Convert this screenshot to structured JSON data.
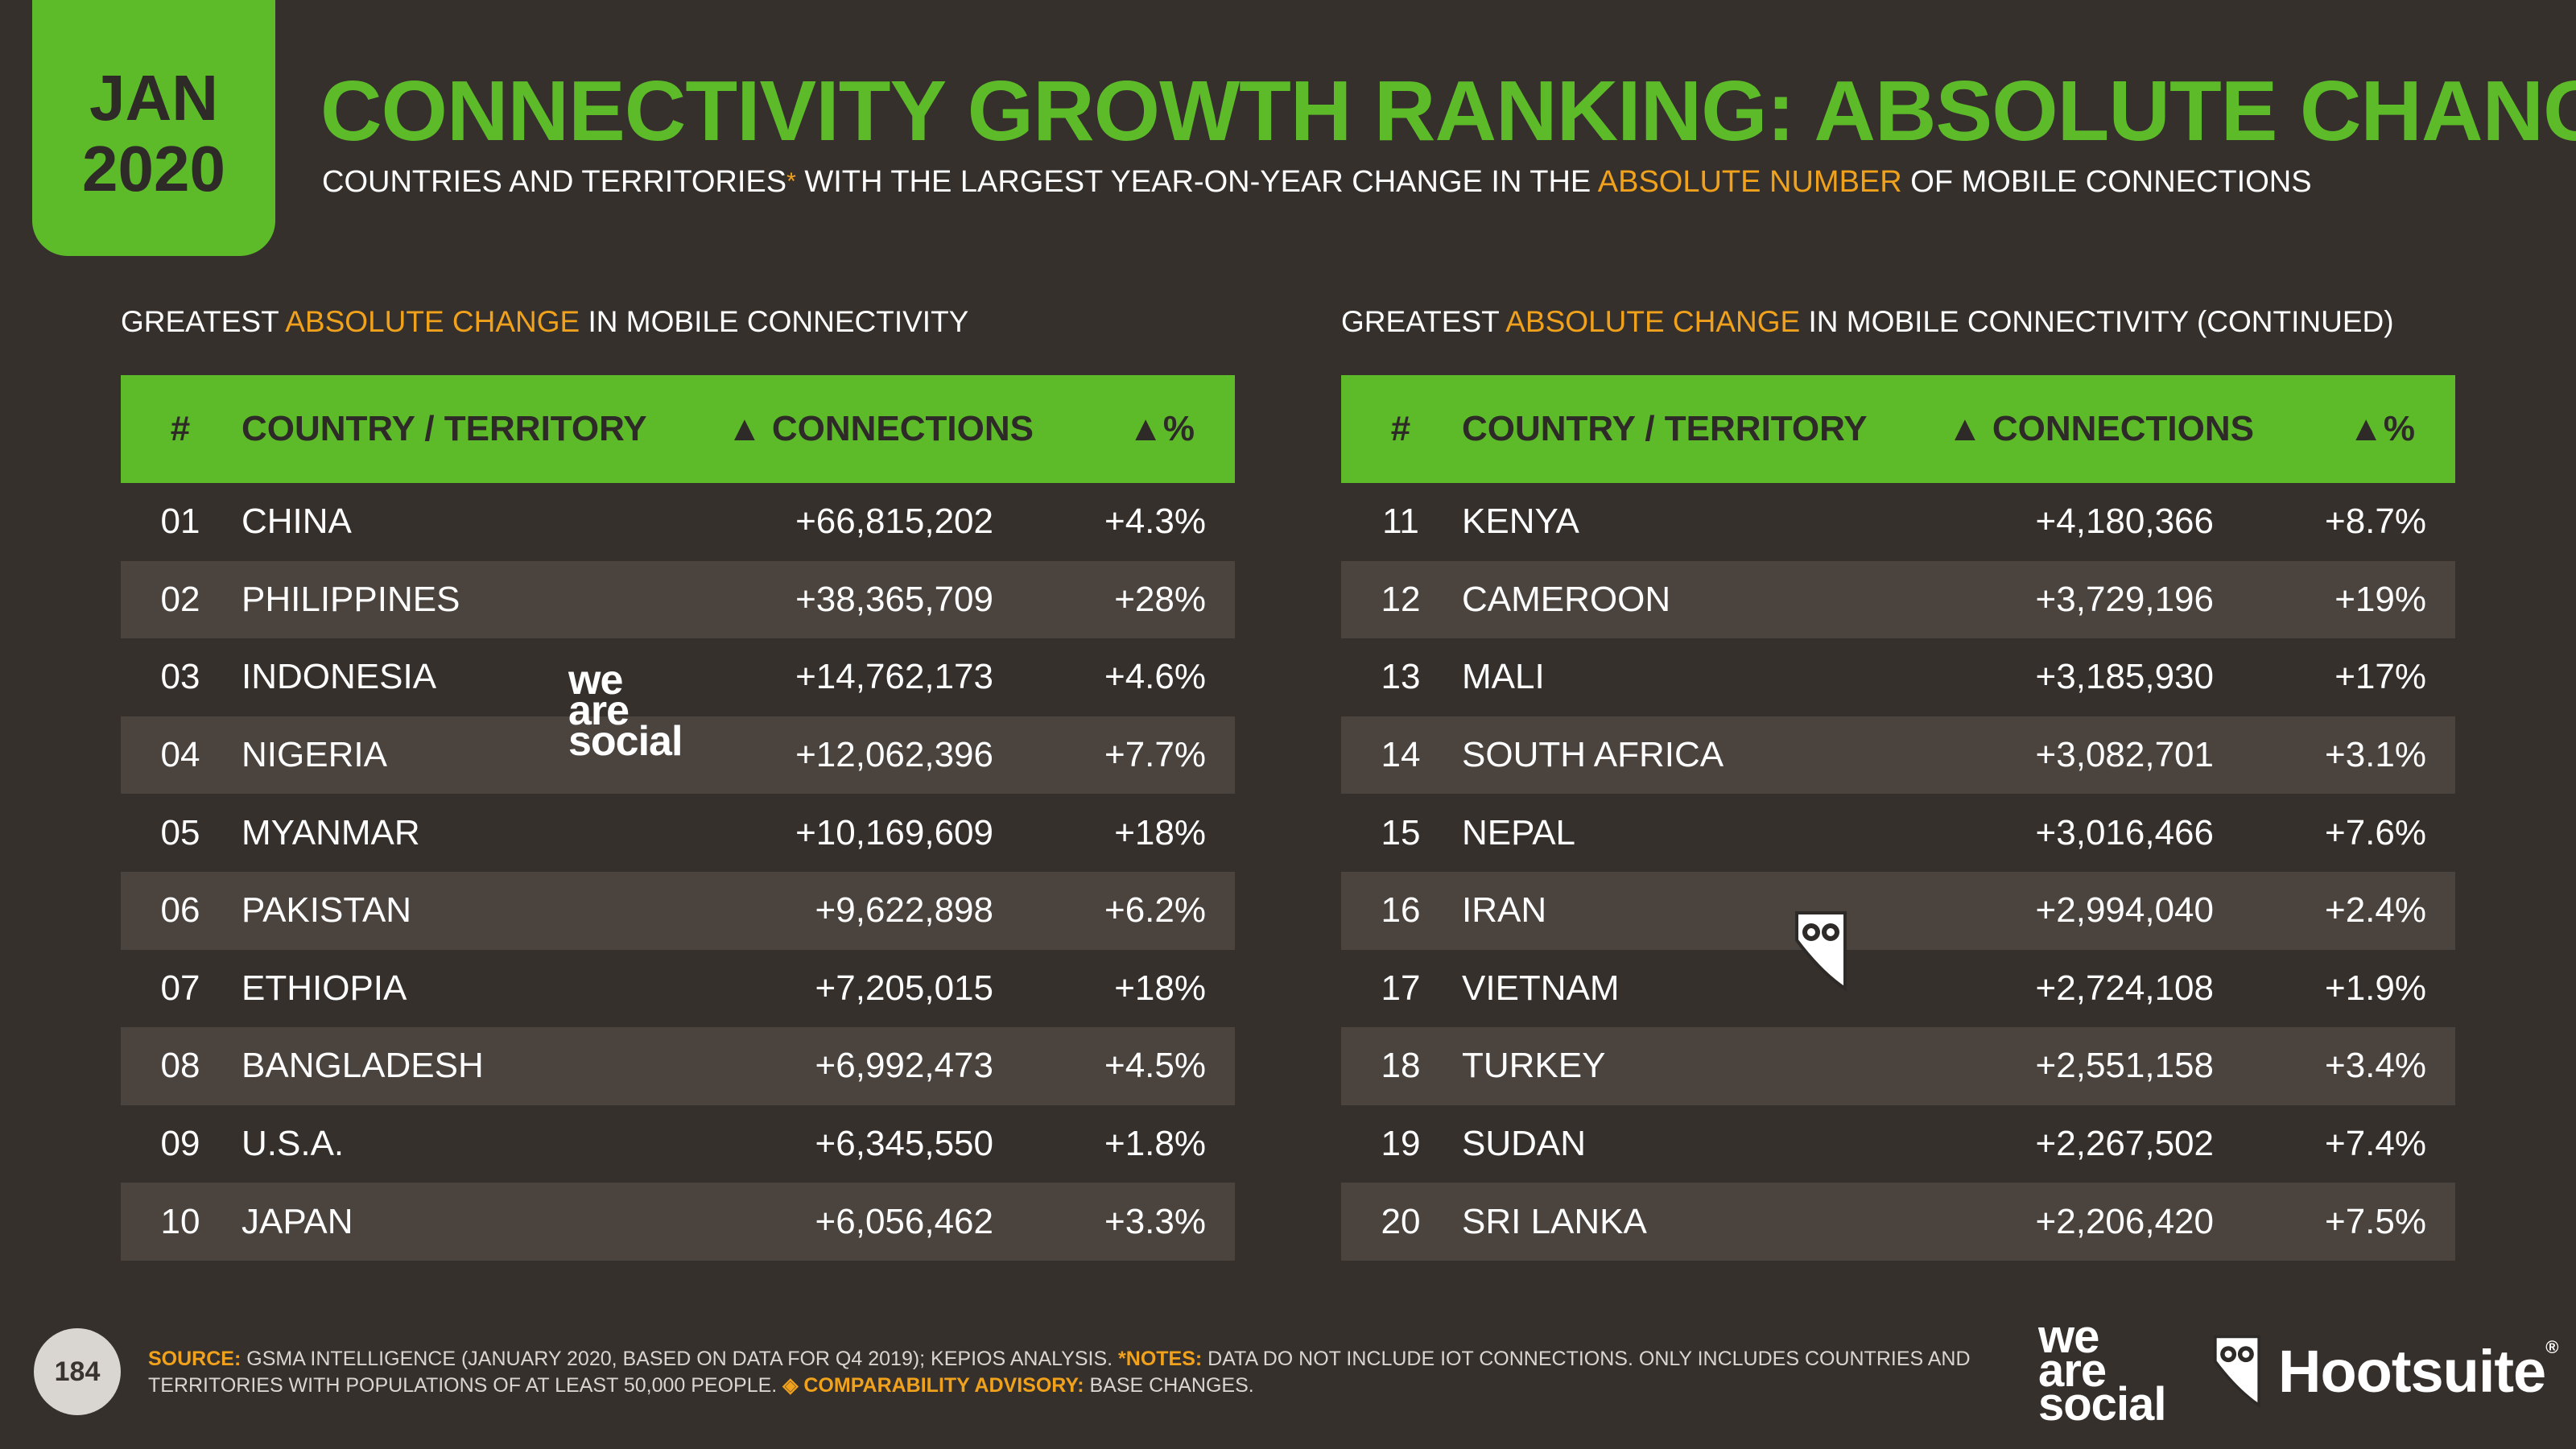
{
  "badge": {
    "month": "JAN",
    "year": "2020"
  },
  "header": {
    "title": "CONNECTIVITY GROWTH RANKING: ABSOLUTE CHANGE",
    "subtitle_part1": "COUNTRIES AND TERRITORIES",
    "subtitle_star": "*",
    "subtitle_part2": " WITH THE LARGEST YEAR-ON-YEAR CHANGE IN THE ",
    "subtitle_highlight": "ABSOLUTE NUMBER",
    "subtitle_part3": " OF MOBILE CONNECTIONS"
  },
  "left_section": {
    "pre": "GREATEST ",
    "highlight": "ABSOLUTE CHANGE",
    "post": " IN MOBILE CONNECTIVITY"
  },
  "right_section": {
    "pre": "GREATEST ",
    "highlight": "ABSOLUTE CHANGE",
    "post": " IN MOBILE CONNECTIVITY (CONTINUED)"
  },
  "columns": {
    "rank": "#",
    "name": "COUNTRY / TERRITORY",
    "connections": "▲ CONNECTIONS",
    "pct": "▲%"
  },
  "left_rows": [
    {
      "rank": "01",
      "name": "CHINA",
      "connections": "+66,815,202",
      "pct": "+4.3%"
    },
    {
      "rank": "02",
      "name": "PHILIPPINES",
      "connections": "+38,365,709",
      "pct": "+28%"
    },
    {
      "rank": "03",
      "name": "INDONESIA",
      "connections": "+14,762,173",
      "pct": "+4.6%"
    },
    {
      "rank": "04",
      "name": "NIGERIA",
      "connections": "+12,062,396",
      "pct": "+7.7%"
    },
    {
      "rank": "05",
      "name": "MYANMAR",
      "connections": "+10,169,609",
      "pct": "+18%"
    },
    {
      "rank": "06",
      "name": "PAKISTAN",
      "connections": "+9,622,898",
      "pct": "+6.2%"
    },
    {
      "rank": "07",
      "name": "ETHIOPIA",
      "connections": "+7,205,015",
      "pct": "+18%"
    },
    {
      "rank": "08",
      "name": "BANGLADESH",
      "connections": "+6,992,473",
      "pct": "+4.5%"
    },
    {
      "rank": "09",
      "name": "U.S.A.",
      "connections": "+6,345,550",
      "pct": "+1.8%"
    },
    {
      "rank": "10",
      "name": "JAPAN",
      "connections": "+6,056,462",
      "pct": "+3.3%"
    }
  ],
  "right_rows": [
    {
      "rank": "11",
      "name": "KENYA",
      "connections": "+4,180,366",
      "pct": "+8.7%"
    },
    {
      "rank": "12",
      "name": "CAMEROON",
      "connections": "+3,729,196",
      "pct": "+19%"
    },
    {
      "rank": "13",
      "name": "MALI",
      "connections": "+3,185,930",
      "pct": "+17%"
    },
    {
      "rank": "14",
      "name": "SOUTH AFRICA",
      "connections": "+3,082,701",
      "pct": "+3.1%"
    },
    {
      "rank": "15",
      "name": "NEPAL",
      "connections": "+3,016,466",
      "pct": "+7.6%"
    },
    {
      "rank": "16",
      "name": "IRAN",
      "connections": "+2,994,040",
      "pct": "+2.4%"
    },
    {
      "rank": "17",
      "name": "VIETNAM",
      "connections": "+2,724,108",
      "pct": "+1.9%"
    },
    {
      "rank": "18",
      "name": "TURKEY",
      "connections": "+2,551,158",
      "pct": "+3.4%"
    },
    {
      "rank": "19",
      "name": "SUDAN",
      "connections": "+2,267,502",
      "pct": "+7.4%"
    },
    {
      "rank": "20",
      "name": "SRI LANKA",
      "connections": "+2,206,420",
      "pct": "+7.5%"
    }
  ],
  "footer": {
    "page_number": "184",
    "source_label": "SOURCE:",
    "source_text": " GSMA INTELLIGENCE (JANUARY 2020, BASED ON DATA FOR Q4 2019); KEPIOS ANALYSIS. ",
    "notes_label": "*NOTES:",
    "notes_text": " DATA DO NOT INCLUDE IOT CONNECTIONS. ONLY INCLUDES COUNTRIES AND TERRITORIES WITH POPULATIONS OF AT LEAST 50,000 PEOPLE. ",
    "advisory_label": "◈ COMPARABILITY ADVISORY:",
    "advisory_text": " BASE CHANGES."
  },
  "logos": {
    "wearesocial_line1": "we",
    "wearesocial_line2": "are",
    "wearesocial_line3": "social",
    "hootsuite": "Hootsuite",
    "hootsuite_reg": "®"
  },
  "colors": {
    "background": "#36302c",
    "accent_green": "#5dbb2a",
    "highlight_orange": "#f0a21c",
    "alt_row": "#4a433e"
  }
}
